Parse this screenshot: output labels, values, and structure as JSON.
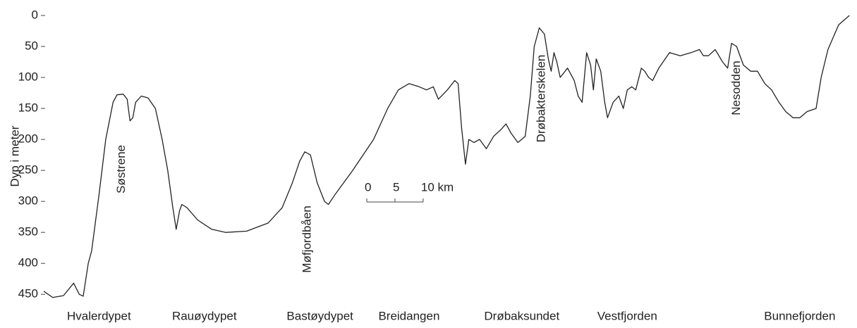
{
  "chart_data": {
    "type": "line",
    "y_label": "Dyp i meter",
    "y_inverted": true,
    "xlim": [
      0,
      143
    ],
    "ylim": [
      0,
      460
    ],
    "yticks": [
      0,
      50,
      100,
      150,
      200,
      250,
      300,
      350,
      400,
      450
    ],
    "color": "#222222",
    "x": [
      0,
      1.6,
      3.5,
      5.3,
      6.3,
      7,
      7.9,
      8.5,
      9.8,
      11,
      12.3,
      13,
      14.1,
      14.8,
      15.3,
      15.8,
      16.3,
      17.3,
      18.5,
      19.8,
      21,
      22,
      22.9,
      23.5,
      24.1,
      24.5,
      25.4,
      27.3,
      29.8,
      32.3,
      36,
      39.8,
      42.3,
      44.1,
      45.4,
      46.3,
      47.3,
      48.5,
      49.8,
      50.5,
      51.6,
      54.8,
      58.5,
      61,
      62.9,
      64.8,
      66.6,
      67.9,
      69.1,
      70,
      71.6,
      72.9,
      73.5,
      74.1,
      74.8,
      75.4,
      76.3,
      77.3,
      78.5,
      79.8,
      81,
      82,
      82.9,
      84.1,
      85.4,
      86.3,
      87,
      87.9,
      88.8,
      89.5,
      90,
      90.5,
      91,
      91.6,
      92.9,
      94.1,
      94.8,
      95.5,
      96.3,
      97,
      97.5,
      98,
      98.8,
      99.5,
      100,
      101,
      102,
      102.8,
      103.5,
      104.3,
      105,
      106,
      106.6,
      107.3,
      108,
      109.1,
      111,
      112.9,
      114.8,
      116.3,
      117,
      117.9,
      119.1,
      120.4,
      121.3,
      122,
      122.9,
      124.1,
      125.4,
      126.6,
      127.9,
      129.1,
      130.4,
      131.6,
      132.9,
      134.1,
      135.4,
      137,
      137.9,
      139.1,
      141,
      142.9
    ],
    "values": [
      445,
      455,
      452,
      432,
      450,
      453,
      400,
      380,
      290,
      200,
      140,
      128,
      127,
      135,
      170,
      165,
      140,
      130,
      133,
      150,
      200,
      250,
      310,
      345,
      315,
      305,
      310,
      330,
      345,
      350,
      348,
      335,
      310,
      270,
      235,
      220,
      225,
      270,
      300,
      305,
      290,
      250,
      200,
      150,
      120,
      110,
      115,
      120,
      115,
      135,
      120,
      105,
      110,
      180,
      240,
      200,
      205,
      200,
      215,
      195,
      185,
      175,
      190,
      205,
      195,
      130,
      50,
      20,
      30,
      70,
      90,
      60,
      75,
      100,
      85,
      105,
      130,
      140,
      60,
      80,
      120,
      70,
      90,
      140,
      165,
      140,
      130,
      150,
      120,
      115,
      120,
      85,
      90,
      100,
      105,
      85,
      60,
      65,
      60,
      55,
      65,
      65,
      55,
      75,
      85,
      45,
      50,
      80,
      90,
      90,
      110,
      120,
      140,
      155,
      165,
      165,
      155,
      150,
      100,
      55,
      15,
      0
    ],
    "places": [
      {
        "text": "Hvalerdypet",
        "x": 9.8
      },
      {
        "text": "Rauøydypet",
        "x": 28.5
      },
      {
        "text": "Bastøydypet",
        "x": 49
      },
      {
        "text": "Breidangen",
        "x": 64.8
      },
      {
        "text": "Drøbaksundet",
        "x": 84.8
      },
      {
        "text": "Vestfjorden",
        "x": 103.5
      },
      {
        "text": "Bunnefjorden",
        "x": 134.1
      }
    ],
    "annotations": [
      {
        "text": "Søstrene",
        "x": 13.8,
        "y": 248
      },
      {
        "text": "Møfjordbåen",
        "x": 46.8,
        "y": 361
      },
      {
        "text": "Drøbakterskelen",
        "x": 88.3,
        "y": 134
      },
      {
        "text": "Nesodden",
        "x": 122.9,
        "y": 117
      }
    ],
    "scale_bar": {
      "ticks": [
        0,
        5,
        {
          "value": 10,
          "label": "10 km"
        }
      ]
    }
  }
}
